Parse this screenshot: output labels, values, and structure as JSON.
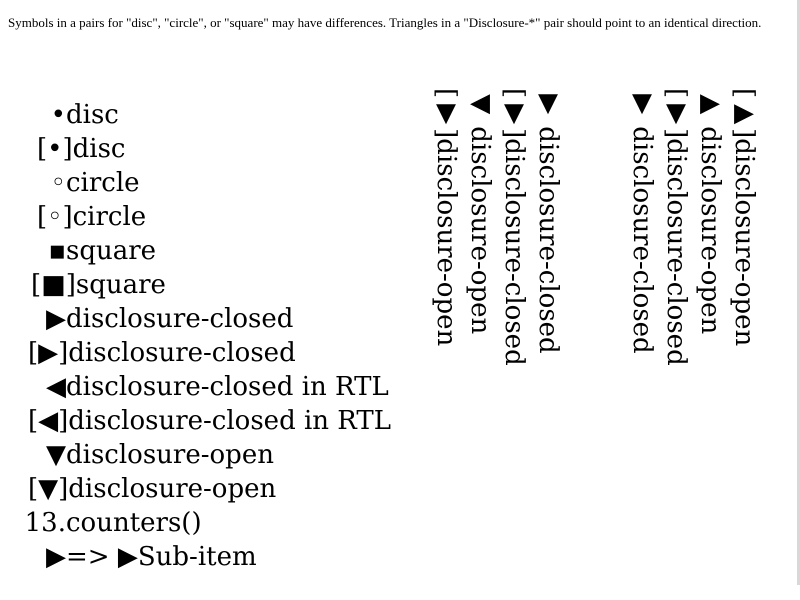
{
  "note": "Symbols in a pairs for \"disc\", \"circle\", or \"square\" may have differences. Triangles in a \"Disclosure-*\" pair should point to an identical direction.",
  "left_list": {
    "rows": [
      {
        "marker": "•",
        "text": "disc"
      },
      {
        "inside": "[•]disc"
      },
      {
        "marker": "◦",
        "text": "circle"
      },
      {
        "inside": "[◦]circle"
      },
      {
        "marker": "▪",
        "text": "square"
      },
      {
        "inside": "[■]square"
      },
      {
        "marker": "▶",
        "text": "disclosure-closed"
      },
      {
        "inside": "[▶]disclosure-closed"
      },
      {
        "marker": "◀",
        "text": "disclosure-closed in RTL"
      },
      {
        "inside": "[◀]disclosure-closed in RTL"
      },
      {
        "marker": "▼",
        "text": "disclosure-open"
      },
      {
        "inside": "[▼]disclosure-open"
      },
      {
        "marker": "13.",
        "text": "counters()"
      },
      {
        "marker": "▶",
        "text": "=> ▶Sub-item"
      }
    ]
  },
  "vertical_group_a": [
    "▼ disclosure-closed",
    "[▼]disclosure-closed",
    "◀ disclosure-open",
    "[▼]disclosure-open"
  ],
  "vertical_group_b": [
    "[▶]disclosure-open",
    "▶ disclosure-open",
    "[▼]disclosure-closed",
    "▼ disclosure-closed"
  ]
}
